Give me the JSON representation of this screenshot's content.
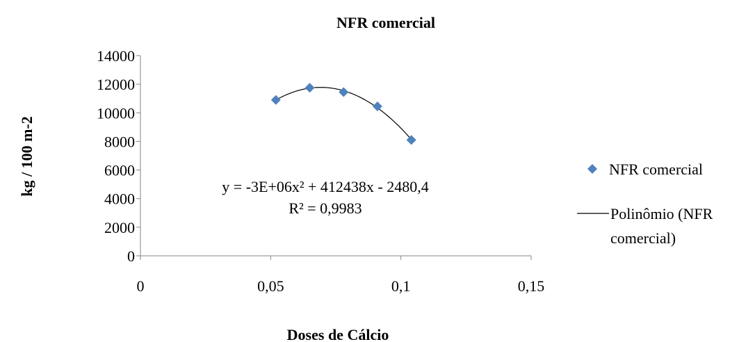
{
  "chart_data": {
    "type": "scatter",
    "title": "NFR comercial",
    "xlabel": "Doses de Cálcio",
    "ylabel": "kg / 100 m-2",
    "xlim": [
      0,
      0.15
    ],
    "ylim": [
      0,
      14000
    ],
    "x_ticks": [
      "0",
      "0,05",
      "0,1",
      "0,15"
    ],
    "y_ticks": [
      "0",
      "2000",
      "4000",
      "6000",
      "8000",
      "10000",
      "12000",
      "14000"
    ],
    "series": [
      {
        "name": "NFR comercial",
        "marker": "diamond",
        "color": "#4f81bd",
        "x": [
          0.052,
          0.065,
          0.078,
          0.091,
          0.104
        ],
        "y": [
          10900,
          11750,
          11450,
          10450,
          8100
        ]
      }
    ],
    "trendline": {
      "name": "Polinômio (NFR comercial)",
      "type": "polynomial",
      "order": 2,
      "color": "#000000",
      "equation": "y = -3E+06x² + 412438x - 2480,4",
      "r_squared": "R² = 0,9983",
      "fit_y": [
        10900,
        11750,
        11450,
        10450,
        8100
      ]
    },
    "grid": false,
    "legend_position": "right",
    "legend": {
      "items": [
        "NFR comercial",
        "Polinômio (NFR",
        "comercial)"
      ]
    }
  }
}
